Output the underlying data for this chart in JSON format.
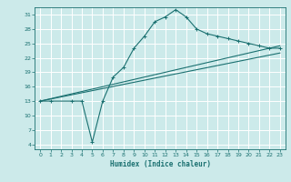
{
  "title": "",
  "xlabel": "Humidex (Indice chaleur)",
  "bg_color": "#cceaea",
  "grid_color": "#ffffff",
  "line_color": "#1a7070",
  "xlim": [
    -0.5,
    23.5
  ],
  "ylim": [
    3,
    32.5
  ],
  "yticks": [
    4,
    7,
    10,
    13,
    16,
    19,
    22,
    25,
    28,
    31
  ],
  "xticks": [
    0,
    1,
    2,
    3,
    4,
    5,
    6,
    7,
    8,
    9,
    10,
    11,
    12,
    13,
    14,
    15,
    16,
    17,
    18,
    19,
    20,
    21,
    22,
    23
  ],
  "line1_x": [
    0,
    1,
    3,
    4,
    5,
    6,
    7,
    8,
    9,
    10,
    11,
    12,
    13,
    14,
    15,
    16,
    17,
    18,
    19,
    20,
    21,
    22,
    23
  ],
  "line1_y": [
    13,
    13,
    13,
    13,
    4.5,
    13,
    18,
    20,
    24,
    26.5,
    29.5,
    30.5,
    32,
    30.5,
    28,
    27,
    26.5,
    26,
    25.5,
    25,
    24.5,
    24,
    24
  ],
  "line2_x": [
    0,
    23
  ],
  "line2_y": [
    13,
    23
  ],
  "line3_x": [
    0,
    23
  ],
  "line3_y": [
    13,
    24.5
  ]
}
